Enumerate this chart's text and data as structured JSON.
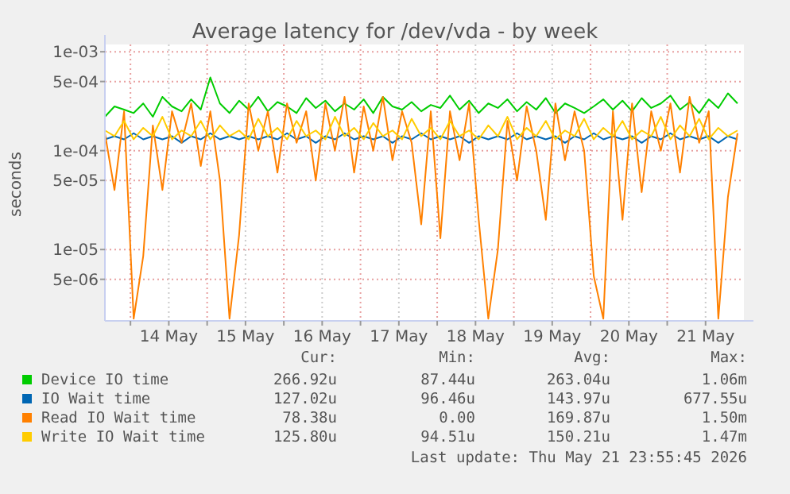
{
  "chart_data": {
    "type": "line",
    "title": "Average latency for /dev/vda - by week",
    "ylabel": "seconds",
    "log": "y",
    "grid": true,
    "legend": "bottom",
    "line_style": "solid",
    "marker": "none",
    "xlim": [
      "2026-05-13T16:00",
      "2026-05-22T00:00"
    ],
    "xticks": [
      {
        "value": "2026-05-14T00:00",
        "label": null
      },
      {
        "value": "2026-05-14T12:00",
        "label": "14 May"
      },
      {
        "value": "2026-05-15T00:00",
        "label": null
      },
      {
        "value": "2026-05-15T12:00",
        "label": "15 May"
      },
      {
        "value": "2026-05-16T00:00",
        "label": null
      },
      {
        "value": "2026-05-16T12:00",
        "label": "16 May"
      },
      {
        "value": "2026-05-17T00:00",
        "label": null
      },
      {
        "value": "2026-05-17T12:00",
        "label": "17 May"
      },
      {
        "value": "2026-05-18T00:00",
        "label": null
      },
      {
        "value": "2026-05-18T12:00",
        "label": "18 May"
      },
      {
        "value": "2026-05-19T00:00",
        "label": null
      },
      {
        "value": "2026-05-19T12:00",
        "label": "19 May"
      },
      {
        "value": "2026-05-20T00:00",
        "label": null
      },
      {
        "value": "2026-05-20T12:00",
        "label": "20 May"
      },
      {
        "value": "2026-05-21T00:00",
        "label": null
      },
      {
        "value": "2026-05-21T12:00",
        "label": "21 May"
      }
    ],
    "ylim": [
      1.9e-06,
      0.0011
    ],
    "yticks": [
      {
        "value": 0.001,
        "label": "1e-03"
      },
      {
        "value": 0.0005,
        "label": "5e-04"
      },
      {
        "value": 0.0001,
        "label": "1e-04"
      },
      {
        "value": 5e-05,
        "label": "5e-05"
      },
      {
        "value": 1e-05,
        "label": "1e-05"
      },
      {
        "value": 5e-06,
        "label": "5e-06"
      }
    ],
    "x": [
      "2026-05-13T16:00",
      "2026-05-13T19:00",
      "2026-05-13T22:00",
      "2026-05-14T01:00",
      "2026-05-14T04:00",
      "2026-05-14T07:00",
      "2026-05-14T10:00",
      "2026-05-14T13:00",
      "2026-05-14T16:00",
      "2026-05-14T19:00",
      "2026-05-14T22:00",
      "2026-05-15T01:00",
      "2026-05-15T04:00",
      "2026-05-15T07:00",
      "2026-05-15T10:00",
      "2026-05-15T13:00",
      "2026-05-15T16:00",
      "2026-05-15T19:00",
      "2026-05-15T22:00",
      "2026-05-16T01:00",
      "2026-05-16T04:00",
      "2026-05-16T07:00",
      "2026-05-16T10:00",
      "2026-05-16T13:00",
      "2026-05-16T16:00",
      "2026-05-16T19:00",
      "2026-05-16T22:00",
      "2026-05-17T01:00",
      "2026-05-17T04:00",
      "2026-05-17T07:00",
      "2026-05-17T10:00",
      "2026-05-17T13:00",
      "2026-05-17T16:00",
      "2026-05-17T19:00",
      "2026-05-17T22:00",
      "2026-05-18T01:00",
      "2026-05-18T04:00",
      "2026-05-18T07:00",
      "2026-05-18T10:00",
      "2026-05-18T13:00",
      "2026-05-18T16:00",
      "2026-05-18T19:00",
      "2026-05-18T22:00",
      "2026-05-19T01:00",
      "2026-05-19T04:00",
      "2026-05-19T07:00",
      "2026-05-19T10:00",
      "2026-05-19T13:00",
      "2026-05-19T16:00",
      "2026-05-19T19:00",
      "2026-05-19T22:00",
      "2026-05-20T01:00",
      "2026-05-20T04:00",
      "2026-05-20T07:00",
      "2026-05-20T10:00",
      "2026-05-20T13:00",
      "2026-05-20T16:00",
      "2026-05-20T19:00",
      "2026-05-20T22:00",
      "2026-05-21T01:00",
      "2026-05-21T04:00",
      "2026-05-21T07:00",
      "2026-05-21T10:00",
      "2026-05-21T13:00",
      "2026-05-21T16:00",
      "2026-05-21T19:00",
      "2026-05-21T22:00"
    ],
    "series": [
      {
        "name": "Device IO time",
        "color": "#00cc00",
        "values": [
          0.00022,
          0.00028,
          0.00026,
          0.00024,
          0.0003,
          0.00022,
          0.00035,
          0.00028,
          0.00025,
          0.00033,
          0.00026,
          0.00055,
          0.0003,
          0.00024,
          0.00032,
          0.00026,
          0.00035,
          0.00025,
          0.00031,
          0.00028,
          0.00024,
          0.00034,
          0.00027,
          0.00032,
          0.00025,
          0.0003,
          0.00026,
          0.00033,
          0.00024,
          0.00035,
          0.00028,
          0.00026,
          0.00031,
          0.00025,
          0.00029,
          0.00027,
          0.00036,
          0.00026,
          0.00032,
          0.00024,
          0.0003,
          0.00027,
          0.00033,
          0.00025,
          0.00031,
          0.00026,
          0.00034,
          0.00024,
          0.0003,
          0.00027,
          0.00024,
          0.00028,
          0.00033,
          0.00026,
          0.00032,
          0.00025,
          0.00034,
          0.00027,
          0.0003,
          0.00036,
          0.00026,
          0.00031,
          0.00024,
          0.00033,
          0.00027,
          0.00038,
          0.0003
        ]
      },
      {
        "name": "IO Wait time",
        "color": "#0066b3",
        "values": [
          0.00013,
          0.00014,
          0.00013,
          0.00015,
          0.00013,
          0.00014,
          0.00013,
          0.00014,
          0.00012,
          0.00014,
          0.00013,
          0.00015,
          0.00013,
          0.00014,
          0.00013,
          0.00014,
          0.00013,
          0.00014,
          0.00013,
          0.00015,
          0.00013,
          0.00014,
          0.00012,
          0.00014,
          0.00013,
          0.00015,
          0.00013,
          0.00014,
          0.00013,
          0.00014,
          0.00012,
          0.00014,
          0.00013,
          0.00015,
          0.00013,
          0.00014,
          0.00013,
          0.00014,
          0.00012,
          0.00014,
          0.00013,
          0.00014,
          0.00013,
          0.00015,
          0.00013,
          0.00014,
          0.00013,
          0.00014,
          0.00012,
          0.00014,
          0.00013,
          0.00015,
          0.00013,
          0.00014,
          0.00013,
          0.00014,
          0.00012,
          0.00014,
          0.00013,
          0.00015,
          0.00013,
          0.00014,
          0.00013,
          0.00014,
          0.00012,
          0.00014,
          0.00013
        ]
      },
      {
        "name": "Read IO Wait time",
        "color": "#ff8000",
        "values": [
          0.00015,
          4e-05,
          0.00025,
          2e-06,
          8.6e-06,
          0.00018,
          4e-05,
          0.00025,
          0.00012,
          0.0003,
          7e-05,
          0.00025,
          5e-05,
          2e-06,
          1.4e-05,
          0.0003,
          0.0001,
          0.00025,
          6e-05,
          0.0003,
          0.00012,
          0.00025,
          5e-05,
          0.0003,
          0.0001,
          0.00035,
          6e-05,
          0.00028,
          0.0001,
          0.00035,
          8e-05,
          0.00025,
          0.00012,
          1.8e-05,
          0.00025,
          1.3e-05,
          0.00025,
          8e-05,
          0.0003,
          2e-05,
          2e-06,
          1e-05,
          0.0002,
          5e-05,
          0.00028,
          0.0001,
          2e-05,
          0.0003,
          8e-05,
          0.00025,
          0.0001,
          5.4e-06,
          2e-06,
          0.00025,
          2e-05,
          0.0003,
          3.8e-05,
          0.00025,
          0.0001,
          0.0003,
          6e-05,
          0.00035,
          0.00012,
          0.00025,
          2e-06,
          3.4e-05,
          0.00015
        ]
      },
      {
        "name": "Write IO Wait time",
        "color": "#ffcc00",
        "values": [
          0.00016,
          0.00014,
          0.0002,
          0.00013,
          0.00017,
          0.00014,
          0.00022,
          0.00013,
          0.00016,
          0.00014,
          0.0002,
          0.00013,
          0.00018,
          0.00014,
          0.00016,
          0.00013,
          0.00021,
          0.00014,
          0.00017,
          0.00013,
          0.0002,
          0.00014,
          0.00016,
          0.00013,
          0.00022,
          0.00014,
          0.00017,
          0.00013,
          0.00019,
          0.00014,
          0.00016,
          0.00013,
          0.00021,
          0.00014,
          0.00017,
          0.00013,
          0.0002,
          0.00014,
          0.00016,
          0.00013,
          0.00018,
          0.00014,
          0.00022,
          0.00013,
          0.00017,
          0.00014,
          0.0002,
          0.00013,
          0.00016,
          0.00014,
          0.00021,
          0.00013,
          0.00017,
          0.00014,
          0.0002,
          0.00013,
          0.00016,
          0.00014,
          0.00022,
          0.00013,
          0.00018,
          0.00014,
          0.00021,
          0.00013,
          0.00017,
          0.00014,
          0.00016
        ]
      }
    ],
    "annotations": [
      "Cur:",
      "Min:",
      "Avg:",
      "Max:",
      "266.92u",
      "87.44u",
      "263.04u",
      "1.06m",
      "127.02u",
      "96.46u",
      "143.97u",
      "677.55u",
      "78.38u",
      "0.00",
      "169.87u",
      "1.50m",
      "125.80u",
      "94.51u",
      "150.21u",
      "1.47m",
      "Last update: Thu May 21 23:55:45 2026"
    ]
  }
}
